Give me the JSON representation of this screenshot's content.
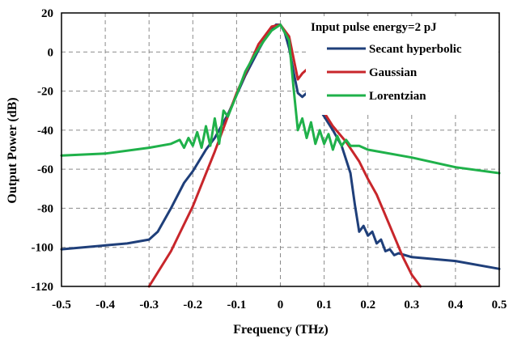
{
  "chart_data": {
    "type": "line",
    "title": "",
    "xlabel": "Frequency (THz)",
    "ylabel": "Output Power (dB)",
    "xlim": [
      -0.5,
      0.5
    ],
    "ylim": [
      -120,
      20
    ],
    "xticks": [
      "-0.5",
      "-0.4",
      "-0.3",
      "-0.2",
      "-0.1",
      "0",
      "0.1",
      "0.2",
      "0.3",
      "0.4",
      "0.5"
    ],
    "yticks": [
      "20",
      "0",
      "-20",
      "-40",
      "-60",
      "-80",
      "-100",
      "-120"
    ],
    "grid": "dashed vertical and horizontal",
    "legend": {
      "title": "Input pulse energy=2 pJ",
      "placement": "top-right"
    },
    "series": [
      {
        "name": "Secant hyperbolic",
        "color": "#1f3f7a",
        "x": [
          -0.5,
          -0.4,
          -0.35,
          -0.3,
          -0.28,
          -0.25,
          -0.22,
          -0.2,
          -0.17,
          -0.15,
          -0.12,
          -0.1,
          -0.08,
          -0.05,
          -0.03,
          -0.01,
          0,
          0.01,
          0.02,
          0.03,
          0.04,
          0.05,
          0.06,
          0.07,
          0.08,
          0.1,
          0.12,
          0.14,
          0.16,
          0.17,
          0.18,
          0.19,
          0.2,
          0.21,
          0.22,
          0.23,
          0.24,
          0.25,
          0.26,
          0.27,
          0.3,
          0.4,
          0.5
        ],
        "y": [
          -101,
          -99,
          -98,
          -96,
          -92,
          -80,
          -67,
          -61,
          -50,
          -44,
          -32,
          -22,
          -12,
          1,
          9,
          14,
          14,
          10,
          2,
          -10,
          -21,
          -23,
          -21,
          -23,
          -26,
          -33,
          -40,
          -48,
          -62,
          -78,
          -92,
          -89,
          -94,
          -92,
          -98,
          -96,
          -102,
          -101,
          -104,
          -103,
          -105,
          -107,
          -111
        ]
      },
      {
        "name": "Gaussian",
        "color": "#c8262b",
        "x": [
          -0.3,
          -0.25,
          -0.2,
          -0.15,
          -0.1,
          -0.05,
          -0.02,
          0,
          0.02,
          0.04,
          0.05,
          0.06,
          0.07,
          0.08,
          0.1,
          0.12,
          0.15,
          0.18,
          0.2,
          0.22,
          0.25,
          0.28,
          0.3,
          0.32
        ],
        "y": [
          -120,
          -102,
          -79,
          -51,
          -21,
          4,
          13,
          14,
          8,
          -14,
          -11,
          -9,
          -11,
          -17,
          -31,
          -38,
          -46,
          -56,
          -65,
          -73,
          -89,
          -105,
          -114,
          -120
        ]
      },
      {
        "name": "Lorentzian",
        "color": "#1fb14a",
        "x": [
          -0.5,
          -0.4,
          -0.3,
          -0.25,
          -0.23,
          -0.22,
          -0.21,
          -0.2,
          -0.19,
          -0.18,
          -0.17,
          -0.16,
          -0.15,
          -0.14,
          -0.13,
          -0.12,
          -0.1,
          -0.08,
          -0.06,
          -0.04,
          -0.02,
          0,
          0.02,
          0.03,
          0.04,
          0.05,
          0.06,
          0.07,
          0.08,
          0.09,
          0.1,
          0.11,
          0.12,
          0.13,
          0.14,
          0.15,
          0.16,
          0.18,
          0.2,
          0.3,
          0.4,
          0.5
        ],
        "y": [
          -53,
          -52,
          -49,
          -47,
          -45,
          -49,
          -44,
          -48,
          -41,
          -49,
          -38,
          -48,
          -34,
          -47,
          -30,
          -33,
          -22,
          -10,
          -2,
          5,
          11,
          14,
          6,
          -18,
          -40,
          -34,
          -44,
          -36,
          -47,
          -40,
          -47,
          -42,
          -50,
          -43,
          -48,
          -45,
          -48,
          -48,
          -50,
          -54,
          -59,
          -62
        ]
      }
    ]
  }
}
